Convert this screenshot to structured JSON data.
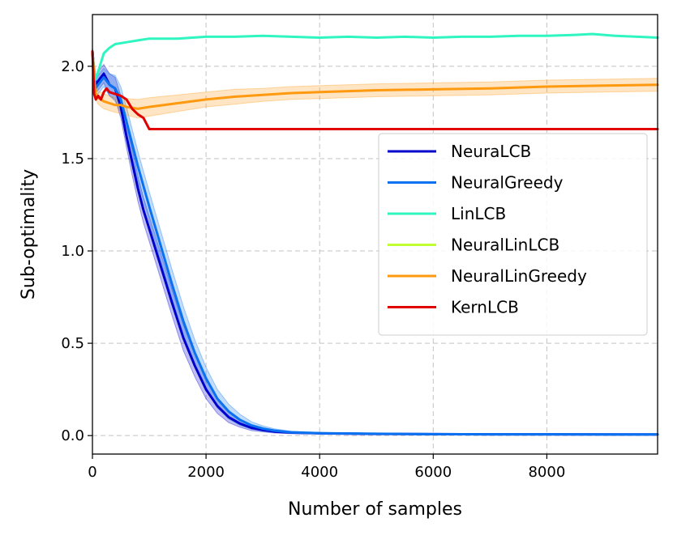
{
  "chart_data": {
    "type": "line",
    "title": "",
    "xlabel": "Number of samples",
    "ylabel": "Sub-optimality",
    "xlim": [
      0,
      9950
    ],
    "ylim": [
      -0.1,
      2.28
    ],
    "xticks": [
      0,
      2000,
      4000,
      6000,
      8000
    ],
    "xtick_labels": [
      "0",
      "2000",
      "4000",
      "6000",
      "8000"
    ],
    "yticks": [
      0.0,
      0.5,
      1.0,
      1.5,
      2.0
    ],
    "ytick_labels": [
      "0.0",
      "0.5",
      "1.0",
      "1.5",
      "2.0"
    ],
    "grid": true,
    "legend_position": "center-right",
    "series": [
      {
        "name": "NeuraLCB",
        "color": "#0000cc",
        "x": [
          0,
          50,
          100,
          200,
          300,
          400,
          500,
          600,
          700,
          800,
          900,
          1000,
          1200,
          1400,
          1600,
          1800,
          2000,
          2200,
          2400,
          2600,
          2800,
          3000,
          3200,
          3500,
          4000,
          5000,
          6000,
          7000,
          8000,
          9950
        ],
        "y": [
          2.08,
          1.9,
          1.92,
          1.96,
          1.9,
          1.88,
          1.78,
          1.62,
          1.48,
          1.34,
          1.22,
          1.12,
          0.92,
          0.72,
          0.53,
          0.38,
          0.25,
          0.16,
          0.1,
          0.065,
          0.042,
          0.03,
          0.022,
          0.016,
          0.012,
          0.009,
          0.008,
          0.007,
          0.007,
          0.006
        ],
        "band": [
          0.02,
          0.04,
          0.05,
          0.05,
          0.06,
          0.06,
          0.06,
          0.06,
          0.07,
          0.07,
          0.07,
          0.07,
          0.07,
          0.07,
          0.07,
          0.06,
          0.05,
          0.04,
          0.03,
          0.02,
          0.015,
          0.01,
          0.008,
          0.005,
          0.003,
          0.002,
          0.002,
          0.002,
          0.002,
          0.002
        ]
      },
      {
        "name": "NeuralGreedy",
        "color": "#0a72f0",
        "x": [
          0,
          50,
          100,
          200,
          300,
          400,
          500,
          600,
          700,
          800,
          900,
          1000,
          1200,
          1400,
          1600,
          1800,
          2000,
          2200,
          2400,
          2600,
          2800,
          3000,
          3200,
          3500,
          4000,
          5000,
          6000,
          7000,
          8000,
          9950
        ],
        "y": [
          2.08,
          1.88,
          1.9,
          1.94,
          1.9,
          1.88,
          1.82,
          1.7,
          1.58,
          1.46,
          1.35,
          1.24,
          1.03,
          0.82,
          0.62,
          0.45,
          0.31,
          0.2,
          0.13,
          0.085,
          0.055,
          0.038,
          0.027,
          0.018,
          0.013,
          0.01,
          0.008,
          0.007,
          0.007,
          0.006
        ],
        "band": [
          0.02,
          0.04,
          0.05,
          0.05,
          0.06,
          0.07,
          0.07,
          0.08,
          0.08,
          0.08,
          0.08,
          0.08,
          0.08,
          0.08,
          0.08,
          0.07,
          0.06,
          0.05,
          0.04,
          0.03,
          0.02,
          0.015,
          0.01,
          0.006,
          0.004,
          0.003,
          0.002,
          0.002,
          0.002,
          0.002
        ]
      },
      {
        "name": "LinLCB",
        "color": "#2ff5c0",
        "x": [
          0,
          50,
          100,
          150,
          200,
          300,
          400,
          600,
          800,
          1000,
          1500,
          2000,
          2500,
          3000,
          3500,
          4000,
          4500,
          5000,
          5500,
          6000,
          6500,
          7000,
          7500,
          8000,
          8500,
          8800,
          9200,
          9600,
          9950
        ],
        "y": [
          2.07,
          1.93,
          1.97,
          2.02,
          2.07,
          2.1,
          2.12,
          2.13,
          2.14,
          2.15,
          2.15,
          2.16,
          2.16,
          2.165,
          2.16,
          2.155,
          2.16,
          2.155,
          2.16,
          2.155,
          2.16,
          2.16,
          2.165,
          2.165,
          2.17,
          2.175,
          2.165,
          2.16,
          2.155
        ],
        "band": []
      },
      {
        "name": "NeuralLinLCB",
        "color": "#c0ff30",
        "x": [],
        "y": [],
        "band": []
      },
      {
        "name": "NeuralLinGreedy",
        "color": "#ff9910",
        "x": [
          0,
          50,
          100,
          200,
          300,
          400,
          500,
          600,
          800,
          1000,
          1500,
          2000,
          2500,
          3000,
          3500,
          4000,
          5000,
          6000,
          7000,
          8000,
          9000,
          9950
        ],
        "y": [
          2.08,
          1.86,
          1.83,
          1.81,
          1.8,
          1.79,
          1.79,
          1.78,
          1.77,
          1.78,
          1.8,
          1.82,
          1.835,
          1.845,
          1.855,
          1.86,
          1.87,
          1.875,
          1.88,
          1.89,
          1.895,
          1.9
        ],
        "band": [
          0.02,
          0.03,
          0.035,
          0.04,
          0.04,
          0.04,
          0.045,
          0.045,
          0.05,
          0.05,
          0.045,
          0.04,
          0.04,
          0.035,
          0.035,
          0.035,
          0.035,
          0.035,
          0.035,
          0.035,
          0.035,
          0.035
        ]
      },
      {
        "name": "KernLCB",
        "color": "#e00000",
        "x": [
          0,
          30,
          60,
          100,
          150,
          200,
          250,
          300,
          400,
          500,
          600,
          700,
          800,
          850,
          900,
          950,
          1000,
          2000,
          4000,
          6000,
          8000,
          9950
        ],
        "y": [
          2.08,
          1.85,
          1.82,
          1.84,
          1.82,
          1.86,
          1.88,
          1.86,
          1.85,
          1.84,
          1.82,
          1.77,
          1.74,
          1.73,
          1.72,
          1.69,
          1.66,
          1.66,
          1.66,
          1.66,
          1.66,
          1.66
        ],
        "band": []
      }
    ]
  }
}
